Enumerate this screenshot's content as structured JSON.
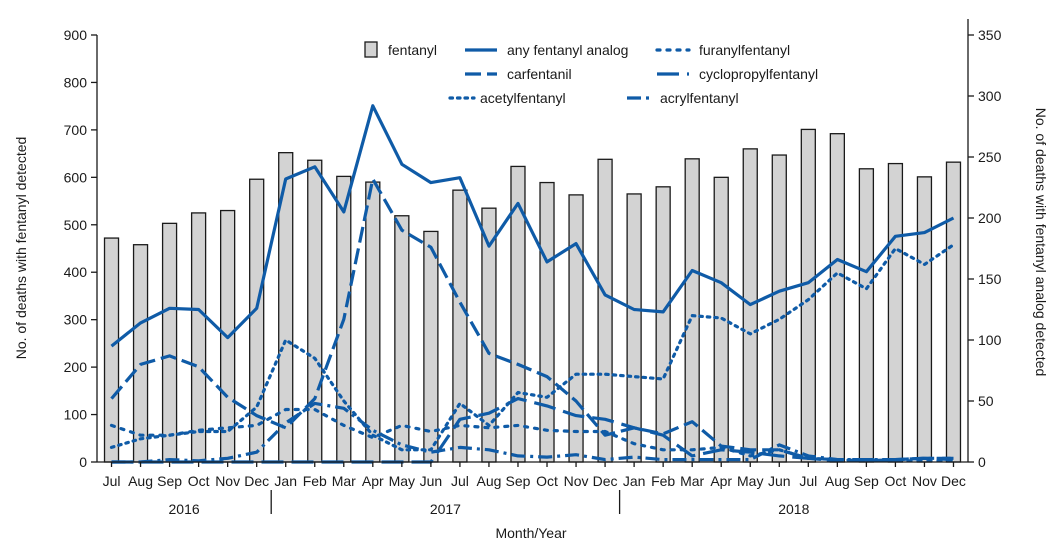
{
  "chart_data": {
    "type": "bar",
    "xlabel": "Month/Year",
    "ylabel_left": "No. of deaths with fentanyl detected",
    "ylabel_right": "No. of deaths with fentanyl analog detected",
    "ylim_left": [
      0,
      900
    ],
    "ylim_right": [
      0,
      350
    ],
    "yticks_left": [
      0,
      100,
      200,
      300,
      400,
      500,
      600,
      700,
      800,
      900
    ],
    "yticks_right": [
      0,
      50,
      100,
      150,
      200,
      250,
      300,
      350
    ],
    "categories": [
      "Jul",
      "Aug",
      "Sep",
      "Oct",
      "Nov",
      "Dec",
      "Jan",
      "Feb",
      "Mar",
      "Apr",
      "May",
      "Jun",
      "Jul",
      "Aug",
      "Sep",
      "Oct",
      "Nov",
      "Dec",
      "Jan",
      "Feb",
      "Mar",
      "Apr",
      "May",
      "Jun",
      "Jul",
      "Aug",
      "Sep",
      "Oct",
      "Nov",
      "Dec"
    ],
    "years": [
      {
        "label": "2016",
        "start": 0,
        "end": 5
      },
      {
        "label": "2017",
        "start": 6,
        "end": 17
      },
      {
        "label": "2018",
        "start": 18,
        "end": 29
      }
    ],
    "grid": false,
    "legend_position": "top-center",
    "bar_series": {
      "name": "fentanyl",
      "axis": "left",
      "color": "#d3d3d3",
      "values": [
        472,
        458,
        503,
        525,
        530,
        596,
        652,
        636,
        602,
        590,
        519,
        486,
        573,
        535,
        623,
        589,
        563,
        638,
        565,
        580,
        639,
        600,
        660,
        647,
        701,
        692,
        618,
        629,
        601,
        632
      ]
    },
    "line_series": [
      {
        "name": "any fentanyl analog",
        "axis": "right",
        "style": "solid",
        "color": "#0f5ba7",
        "values": [
          95,
          114,
          126,
          125,
          102,
          126,
          232,
          242,
          205,
          292,
          244,
          229,
          233,
          177,
          212,
          164,
          179,
          137,
          125,
          123,
          157,
          147,
          129,
          140,
          147,
          166,
          156,
          185,
          188,
          200
        ]
      },
      {
        "name": "carfentanil",
        "axis": "right",
        "style": "dash",
        "color": "#0f5ba7",
        "values": [
          52,
          80,
          87,
          78,
          53,
          38,
          28,
          52,
          117,
          232,
          190,
          176,
          131,
          89,
          80,
          70,
          50,
          22,
          28,
          23,
          33,
          13,
          10,
          10,
          3,
          1,
          1,
          2,
          3,
          2
        ]
      },
      {
        "name": "acetylfentanyl",
        "axis": "right",
        "style": "dot",
        "color": "#0f5ba7",
        "values": [
          12,
          19,
          22,
          25,
          25,
          45,
          100,
          85,
          50,
          22,
          10,
          10,
          48,
          30,
          57,
          53,
          72,
          72,
          70,
          68,
          120,
          118,
          105,
          117,
          133,
          155,
          142,
          175,
          162,
          178
        ]
      },
      {
        "name": "furanylfentanyl",
        "axis": "right",
        "style": "short-dot",
        "color": "#0f5ba7",
        "values": [
          30,
          22,
          22,
          26,
          28,
          30,
          43,
          43,
          30,
          20,
          30,
          25,
          30,
          28,
          30,
          26,
          25,
          25,
          15,
          10,
          10,
          12,
          5,
          10,
          3,
          2,
          1,
          1,
          1,
          1
        ]
      },
      {
        "name": "cyclopropylfentanyl",
        "axis": "right",
        "style": "long-dash",
        "color": "#0f5ba7",
        "values": [
          0,
          0,
          0,
          0,
          0,
          0,
          0,
          0,
          0,
          0,
          0,
          0,
          35,
          40,
          52,
          46,
          38,
          35,
          28,
          22,
          5,
          10,
          8,
          5,
          3,
          2,
          2,
          2,
          3,
          3
        ]
      },
      {
        "name": "acrylfentanyl",
        "axis": "right",
        "style": "dash-dot",
        "color": "#0f5ba7",
        "values": [
          0,
          0,
          2,
          1,
          3,
          8,
          32,
          48,
          44,
          26,
          14,
          8,
          12,
          10,
          5,
          4,
          6,
          2,
          4,
          2,
          2,
          2,
          2,
          14,
          5,
          2,
          2,
          2,
          3,
          3
        ]
      }
    ]
  }
}
